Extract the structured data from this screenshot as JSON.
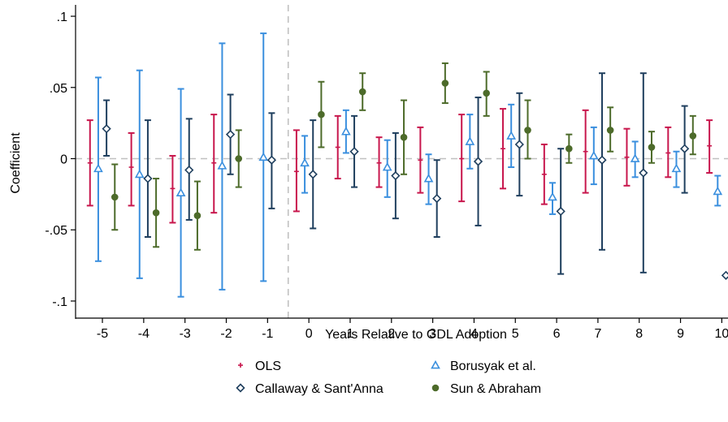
{
  "chart_data": {
    "type": "scatter",
    "subtype": "coefficient-plot-with-confidence-intervals",
    "xlabel": "Years Relative to GDL Adoption",
    "ylabel": "Coefficient",
    "x": [
      -5,
      -4,
      -3,
      -2,
      -1,
      0,
      1,
      2,
      3,
      4,
      5,
      6,
      7,
      8,
      9,
      10
    ],
    "x_tick_labels": [
      "-5",
      "-4",
      "-3",
      "-2",
      "-1",
      "0",
      "1",
      "2",
      "3",
      "4",
      "5",
      "6",
      "7",
      "8",
      "9",
      "10"
    ],
    "y_ticks": [
      0.1,
      0.05,
      0,
      -0.05,
      -0.1
    ],
    "y_tick_labels": [
      ".1",
      ".05",
      "0",
      "-.05",
      "-.1"
    ],
    "ylim": [
      -0.112,
      0.108
    ],
    "xlim": [
      -5.65,
      10.15
    ],
    "reference_lines": {
      "horizontal_y": 0,
      "vertical_x": -0.5,
      "style": "dashed",
      "color": "#c0c0c0"
    },
    "grid": false,
    "legend_position": "bottom",
    "series": [
      {
        "name": "OLS",
        "marker": "plus",
        "color": "#c8174d",
        "offset": -0.3,
        "x": [
          -5,
          -4,
          -3,
          -2,
          0,
          1,
          2,
          3,
          4,
          5,
          6,
          7,
          8,
          9,
          10
        ],
        "estimate": [
          -0.003,
          -0.006,
          -0.021,
          -0.003,
          -0.009,
          0.008,
          -0.003,
          -0.001,
          0.0,
          0.007,
          -0.011,
          0.005,
          0.001,
          0.004,
          0.009
        ],
        "ci_low": [
          -0.033,
          -0.033,
          -0.045,
          -0.038,
          -0.037,
          -0.014,
          -0.02,
          -0.024,
          -0.03,
          -0.021,
          -0.032,
          -0.024,
          -0.019,
          -0.013,
          -0.01
        ],
        "ci_high": [
          0.027,
          0.018,
          0.002,
          0.031,
          0.02,
          0.03,
          0.015,
          0.022,
          0.031,
          0.035,
          0.01,
          0.034,
          0.021,
          0.022,
          0.027
        ]
      },
      {
        "name": "Borusyak et al.",
        "marker": "triangle",
        "color": "#3a8fde",
        "offset": -0.1,
        "x": [
          -5,
          -4,
          -3,
          -2,
          -1,
          0,
          1,
          2,
          3,
          4,
          5,
          6,
          7,
          8,
          9,
          10
        ],
        "estimate": [
          -0.007,
          -0.011,
          -0.024,
          -0.005,
          0.001,
          -0.003,
          0.019,
          -0.006,
          -0.014,
          0.012,
          0.016,
          -0.027,
          0.002,
          0.0,
          -0.007,
          -0.023
        ],
        "ci_low": [
          -0.072,
          -0.084,
          -0.097,
          -0.092,
          -0.086,
          -0.024,
          0.004,
          -0.027,
          -0.032,
          -0.007,
          -0.006,
          -0.039,
          -0.018,
          -0.013,
          -0.02,
          -0.033
        ],
        "ci_high": [
          0.057,
          0.062,
          0.049,
          0.081,
          0.088,
          0.016,
          0.034,
          0.013,
          0.003,
          0.031,
          0.038,
          -0.017,
          0.022,
          0.012,
          0.005,
          -0.012
        ]
      },
      {
        "name": "Callaway & Sant'Anna",
        "marker": "diamond",
        "color": "#1f3f5e",
        "offset": 0.1,
        "x": [
          -5,
          -4,
          -3,
          -2,
          -1,
          0,
          1,
          2,
          3,
          4,
          5,
          6,
          7,
          8,
          9,
          10
        ],
        "estimate": [
          0.021,
          -0.014,
          -0.008,
          0.017,
          -0.001,
          -0.011,
          0.005,
          -0.012,
          -0.028,
          -0.002,
          0.01,
          -0.037,
          -0.001,
          -0.01,
          0.007,
          -0.082
        ],
        "ci_low": [
          0.002,
          -0.055,
          -0.043,
          -0.011,
          -0.035,
          -0.049,
          -0.02,
          -0.042,
          -0.055,
          -0.047,
          -0.026,
          -0.081,
          -0.064,
          -0.08,
          -0.024,
          -0.082
        ],
        "ci_high": [
          0.041,
          0.027,
          0.028,
          0.045,
          0.032,
          0.027,
          0.03,
          0.018,
          -0.001,
          0.043,
          0.046,
          0.007,
          0.06,
          0.06,
          0.037,
          -0.082
        ]
      },
      {
        "name": "Sun & Abraham",
        "marker": "circle",
        "color": "#4d6b2a",
        "offset": 0.3,
        "x": [
          -5,
          -4,
          -3,
          -2,
          0,
          1,
          2,
          3,
          4,
          5,
          6,
          7,
          8,
          9,
          10
        ],
        "estimate": [
          -0.027,
          -0.038,
          -0.04,
          0.0,
          0.031,
          0.047,
          0.015,
          0.053,
          0.046,
          0.02,
          0.007,
          0.02,
          0.008,
          0.016,
          0.024
        ],
        "ci_low": [
          -0.05,
          -0.062,
          -0.064,
          -0.02,
          0.008,
          0.034,
          -0.011,
          0.039,
          0.03,
          0.0,
          -0.003,
          0.005,
          -0.003,
          0.003,
          0.015
        ],
        "ci_high": [
          -0.004,
          -0.014,
          -0.016,
          0.02,
          0.054,
          0.06,
          0.041,
          0.067,
          0.061,
          0.041,
          0.017,
          0.036,
          0.019,
          0.03,
          0.033
        ]
      }
    ]
  }
}
